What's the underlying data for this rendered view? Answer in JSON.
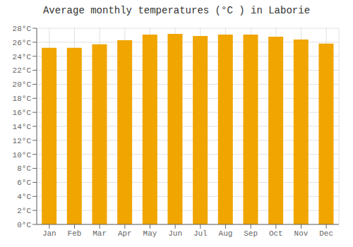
{
  "chart_data": {
    "type": "bar",
    "title": "Average monthly temperatures (°C ) in Laborie",
    "categories": [
      "Jan",
      "Feb",
      "Mar",
      "Apr",
      "May",
      "Jun",
      "Jul",
      "Aug",
      "Sep",
      "Oct",
      "Nov",
      "Dec"
    ],
    "values": [
      25.2,
      25.2,
      25.7,
      26.3,
      27.1,
      27.2,
      26.9,
      27.1,
      27.1,
      26.8,
      26.4,
      25.8
    ],
    "color": "#F0A500",
    "ylim": [
      0,
      28
    ],
    "yticks": [
      {
        "value": 0,
        "label": "0°C"
      },
      {
        "value": 2,
        "label": "2°C"
      },
      {
        "value": 4,
        "label": "4°C"
      },
      {
        "value": 6,
        "label": "6°C"
      },
      {
        "value": 8,
        "label": "8°C"
      },
      {
        "value": 10,
        "label": "10°C"
      },
      {
        "value": 12,
        "label": "12°C"
      },
      {
        "value": 14,
        "label": "14°C"
      },
      {
        "value": 16,
        "label": "16°C"
      },
      {
        "value": 18,
        "label": "18°C"
      },
      {
        "value": 20,
        "label": "20°C"
      },
      {
        "value": 22,
        "label": "22°C"
      },
      {
        "value": 24,
        "label": "24°C"
      },
      {
        "value": 26,
        "label": "26°C"
      },
      {
        "value": 28,
        "label": "28°C"
      }
    ],
    "grid": true
  }
}
